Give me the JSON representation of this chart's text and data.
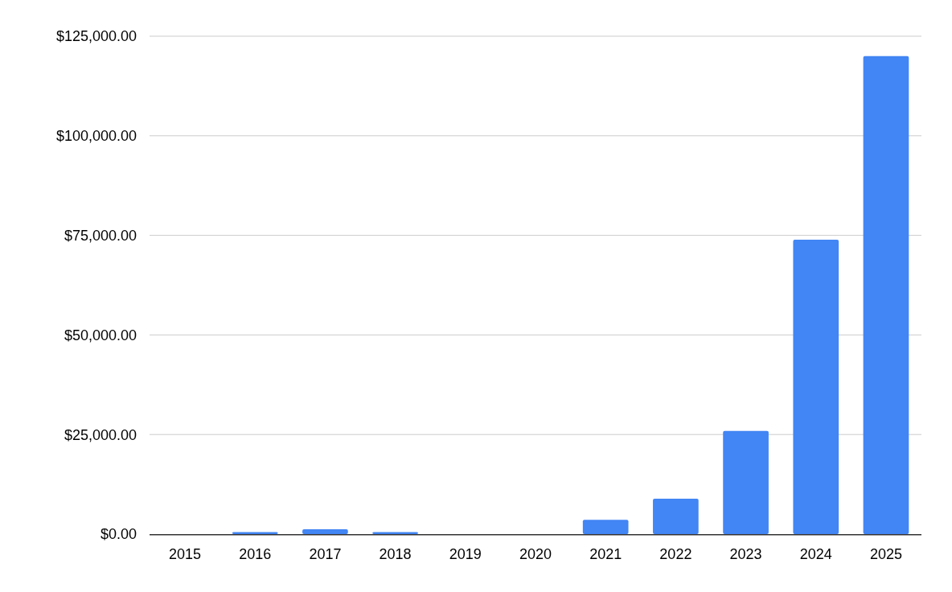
{
  "chart_data": {
    "type": "bar",
    "categories": [
      "2015",
      "2016",
      "2017",
      "2018",
      "2019",
      "2020",
      "2021",
      "2022",
      "2023",
      "2024",
      "2025"
    ],
    "values": [
      0,
      500,
      1200,
      500,
      0,
      0,
      3600,
      8900,
      25900,
      73900,
      120000
    ],
    "color": "#4285f4",
    "ylim": [
      0,
      125000
    ],
    "yticks": [
      {
        "value": 0,
        "label": "$0.00"
      },
      {
        "value": 25000,
        "label": "$25,000.00"
      },
      {
        "value": 50000,
        "label": "$50,000.00"
      },
      {
        "value": 75000,
        "label": "$75,000.00"
      },
      {
        "value": 100000,
        "label": "$100,000.00"
      },
      {
        "value": 125000,
        "label": "$125,000.00"
      }
    ],
    "grid": true
  }
}
